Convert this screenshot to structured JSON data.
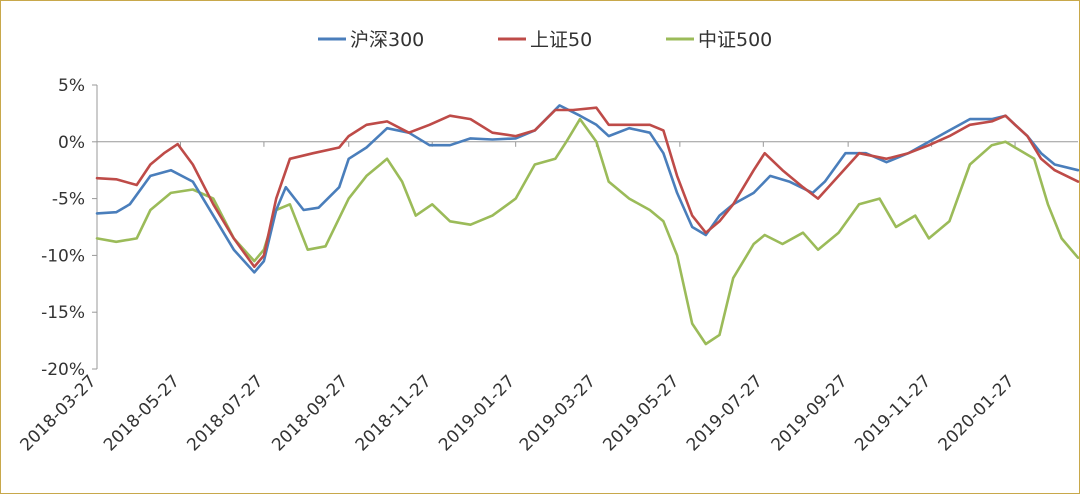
{
  "chart_data": {
    "type": "line",
    "title": "",
    "xlabel": "",
    "ylabel": "",
    "ylim": [
      -20,
      5
    ],
    "xlim": [
      "2018-03-27",
      "2020-03-13"
    ],
    "y_ticks": [
      "5%",
      "0%",
      "-5%",
      "-10%",
      "-15%",
      "-20%"
    ],
    "y_tick_values": [
      5,
      0,
      -5,
      -10,
      -15,
      -20
    ],
    "x_ticks": [
      "2018-03-27",
      "2018-05-27",
      "2018-07-27",
      "2018-09-27",
      "2018-11-27",
      "2019-01-27",
      "2019-03-27",
      "2019-05-27",
      "2019-07-27",
      "2019-09-27",
      "2019-11-27",
      "2020-01-27"
    ],
    "grid": false,
    "legend_position": "top",
    "series": [
      {
        "name": "沪深300",
        "color": "#4a7ebb",
        "points": [
          [
            "2018-03-27",
            -6.3
          ],
          [
            "2018-04-10",
            -6.2
          ],
          [
            "2018-04-20",
            -5.5
          ],
          [
            "2018-05-05",
            -3.0
          ],
          [
            "2018-05-20",
            -2.5
          ],
          [
            "2018-06-05",
            -3.5
          ],
          [
            "2018-06-20",
            -6.5
          ],
          [
            "2018-07-05",
            -9.5
          ],
          [
            "2018-07-20",
            -11.5
          ],
          [
            "2018-07-27",
            -10.5
          ],
          [
            "2018-08-05",
            -6.0
          ],
          [
            "2018-08-12",
            -4.0
          ],
          [
            "2018-08-25",
            -6.0
          ],
          [
            "2018-09-05",
            -5.8
          ],
          [
            "2018-09-20",
            -4.0
          ],
          [
            "2018-09-27",
            -1.5
          ],
          [
            "2018-10-10",
            -0.5
          ],
          [
            "2018-10-25",
            1.2
          ],
          [
            "2018-11-10",
            0.8
          ],
          [
            "2018-11-25",
            -0.3
          ],
          [
            "2018-12-10",
            -0.3
          ],
          [
            "2018-12-25",
            0.3
          ],
          [
            "2019-01-10",
            0.2
          ],
          [
            "2019-01-27",
            0.3
          ],
          [
            "2019-02-10",
            1.0
          ],
          [
            "2019-02-28",
            3.2
          ],
          [
            "2019-03-15",
            2.3
          ],
          [
            "2019-03-27",
            1.5
          ],
          [
            "2019-04-05",
            0.5
          ],
          [
            "2019-04-20",
            1.2
          ],
          [
            "2019-05-05",
            0.8
          ],
          [
            "2019-05-15",
            -1.0
          ],
          [
            "2019-05-25",
            -4.5
          ],
          [
            "2019-06-05",
            -7.5
          ],
          [
            "2019-06-15",
            -8.2
          ],
          [
            "2019-06-25",
            -6.5
          ],
          [
            "2019-07-05",
            -5.5
          ],
          [
            "2019-07-20",
            -4.5
          ],
          [
            "2019-08-01",
            -3.0
          ],
          [
            "2019-08-15",
            -3.5
          ],
          [
            "2019-09-01",
            -4.5
          ],
          [
            "2019-09-10",
            -3.5
          ],
          [
            "2019-09-25",
            -1.0
          ],
          [
            "2019-10-10",
            -1.0
          ],
          [
            "2019-10-25",
            -1.8
          ],
          [
            "2019-11-10",
            -1.0
          ],
          [
            "2019-11-25",
            0.0
          ],
          [
            "2019-12-10",
            1.0
          ],
          [
            "2019-12-25",
            2.0
          ],
          [
            "2020-01-10",
            2.0
          ],
          [
            "2020-01-20",
            2.3
          ],
          [
            "2020-01-27",
            1.5
          ],
          [
            "2020-02-05",
            0.5
          ],
          [
            "2020-02-15",
            -1.0
          ],
          [
            "2020-02-25",
            -2.0
          ],
          [
            "2020-03-13",
            -2.5
          ]
        ]
      },
      {
        "name": "上证50",
        "color": "#be4b48",
        "points": [
          [
            "2018-03-27",
            -3.2
          ],
          [
            "2018-04-10",
            -3.3
          ],
          [
            "2018-04-25",
            -3.8
          ],
          [
            "2018-05-05",
            -2.0
          ],
          [
            "2018-05-15",
            -1.0
          ],
          [
            "2018-05-25",
            -0.2
          ],
          [
            "2018-06-05",
            -2.0
          ],
          [
            "2018-06-20",
            -5.5
          ],
          [
            "2018-07-05",
            -8.5
          ],
          [
            "2018-07-20",
            -11.0
          ],
          [
            "2018-07-27",
            -10.0
          ],
          [
            "2018-08-05",
            -5.0
          ],
          [
            "2018-08-15",
            -1.5
          ],
          [
            "2018-09-01",
            -1.0
          ],
          [
            "2018-09-20",
            -0.5
          ],
          [
            "2018-09-27",
            0.5
          ],
          [
            "2018-10-10",
            1.5
          ],
          [
            "2018-10-25",
            1.8
          ],
          [
            "2018-11-10",
            0.8
          ],
          [
            "2018-11-25",
            1.5
          ],
          [
            "2018-12-10",
            2.3
          ],
          [
            "2018-12-25",
            2.0
          ],
          [
            "2019-01-10",
            0.8
          ],
          [
            "2019-01-27",
            0.5
          ],
          [
            "2019-02-10",
            1.0
          ],
          [
            "2019-02-25",
            2.8
          ],
          [
            "2019-03-10",
            2.8
          ],
          [
            "2019-03-27",
            3.0
          ],
          [
            "2019-04-05",
            1.5
          ],
          [
            "2019-04-20",
            1.5
          ],
          [
            "2019-05-05",
            1.5
          ],
          [
            "2019-05-15",
            1.0
          ],
          [
            "2019-05-25",
            -3.0
          ],
          [
            "2019-06-05",
            -6.5
          ],
          [
            "2019-06-15",
            -8.0
          ],
          [
            "2019-06-25",
            -7.0
          ],
          [
            "2019-07-05",
            -5.5
          ],
          [
            "2019-07-20",
            -2.5
          ],
          [
            "2019-07-28",
            -1.0
          ],
          [
            "2019-08-10",
            -2.5
          ],
          [
            "2019-08-25",
            -4.0
          ],
          [
            "2019-09-05",
            -5.0
          ],
          [
            "2019-09-20",
            -3.0
          ],
          [
            "2019-10-05",
            -1.0
          ],
          [
            "2019-10-25",
            -1.5
          ],
          [
            "2019-11-10",
            -1.0
          ],
          [
            "2019-11-25",
            -0.3
          ],
          [
            "2019-12-10",
            0.5
          ],
          [
            "2019-12-25",
            1.5
          ],
          [
            "2020-01-10",
            1.8
          ],
          [
            "2020-01-20",
            2.3
          ],
          [
            "2020-01-27",
            1.5
          ],
          [
            "2020-02-05",
            0.5
          ],
          [
            "2020-02-15",
            -1.5
          ],
          [
            "2020-02-25",
            -2.5
          ],
          [
            "2020-03-13",
            -3.5
          ]
        ]
      },
      {
        "name": "中证500",
        "color": "#9bbb59",
        "points": [
          [
            "2018-03-27",
            -8.5
          ],
          [
            "2018-04-10",
            -8.8
          ],
          [
            "2018-04-25",
            -8.5
          ],
          [
            "2018-05-05",
            -6.0
          ],
          [
            "2018-05-20",
            -4.5
          ],
          [
            "2018-06-05",
            -4.2
          ],
          [
            "2018-06-20",
            -5.0
          ],
          [
            "2018-07-05",
            -8.5
          ],
          [
            "2018-07-20",
            -10.5
          ],
          [
            "2018-07-27",
            -9.5
          ],
          [
            "2018-08-05",
            -6.0
          ],
          [
            "2018-08-15",
            -5.5
          ],
          [
            "2018-08-28",
            -9.5
          ],
          [
            "2018-09-10",
            -9.2
          ],
          [
            "2018-09-27",
            -5.0
          ],
          [
            "2018-10-10",
            -3.0
          ],
          [
            "2018-10-25",
            -1.5
          ],
          [
            "2018-11-05",
            -3.5
          ],
          [
            "2018-11-15",
            -6.5
          ],
          [
            "2018-11-27",
            -5.5
          ],
          [
            "2018-12-10",
            -7.0
          ],
          [
            "2018-12-25",
            -7.3
          ],
          [
            "2019-01-10",
            -6.5
          ],
          [
            "2019-01-27",
            -5.0
          ],
          [
            "2019-02-10",
            -2.0
          ],
          [
            "2019-02-25",
            -1.5
          ],
          [
            "2019-03-05",
            0.0
          ],
          [
            "2019-03-15",
            2.0
          ],
          [
            "2019-03-27",
            0.0
          ],
          [
            "2019-04-05",
            -3.5
          ],
          [
            "2019-04-20",
            -5.0
          ],
          [
            "2019-05-05",
            -6.0
          ],
          [
            "2019-05-15",
            -7.0
          ],
          [
            "2019-05-25",
            -10.0
          ],
          [
            "2019-06-05",
            -16.0
          ],
          [
            "2019-06-15",
            -17.8
          ],
          [
            "2019-06-25",
            -17.0
          ],
          [
            "2019-07-05",
            -12.0
          ],
          [
            "2019-07-20",
            -9.0
          ],
          [
            "2019-07-28",
            -8.2
          ],
          [
            "2019-08-10",
            -9.0
          ],
          [
            "2019-08-25",
            -8.0
          ],
          [
            "2019-09-05",
            -9.5
          ],
          [
            "2019-09-20",
            -8.0
          ],
          [
            "2019-10-05",
            -5.5
          ],
          [
            "2019-10-20",
            -5.0
          ],
          [
            "2019-11-01",
            -7.5
          ],
          [
            "2019-11-15",
            -6.5
          ],
          [
            "2019-11-25",
            -8.5
          ],
          [
            "2019-12-10",
            -7.0
          ],
          [
            "2019-12-25",
            -2.0
          ],
          [
            "2020-01-10",
            -0.3
          ],
          [
            "2020-01-20",
            0.0
          ],
          [
            "2020-01-27",
            -0.5
          ],
          [
            "2020-02-10",
            -1.5
          ],
          [
            "2020-02-20",
            -5.5
          ],
          [
            "2020-03-01",
            -8.5
          ],
          [
            "2020-03-13",
            -10.2
          ]
        ]
      }
    ]
  }
}
